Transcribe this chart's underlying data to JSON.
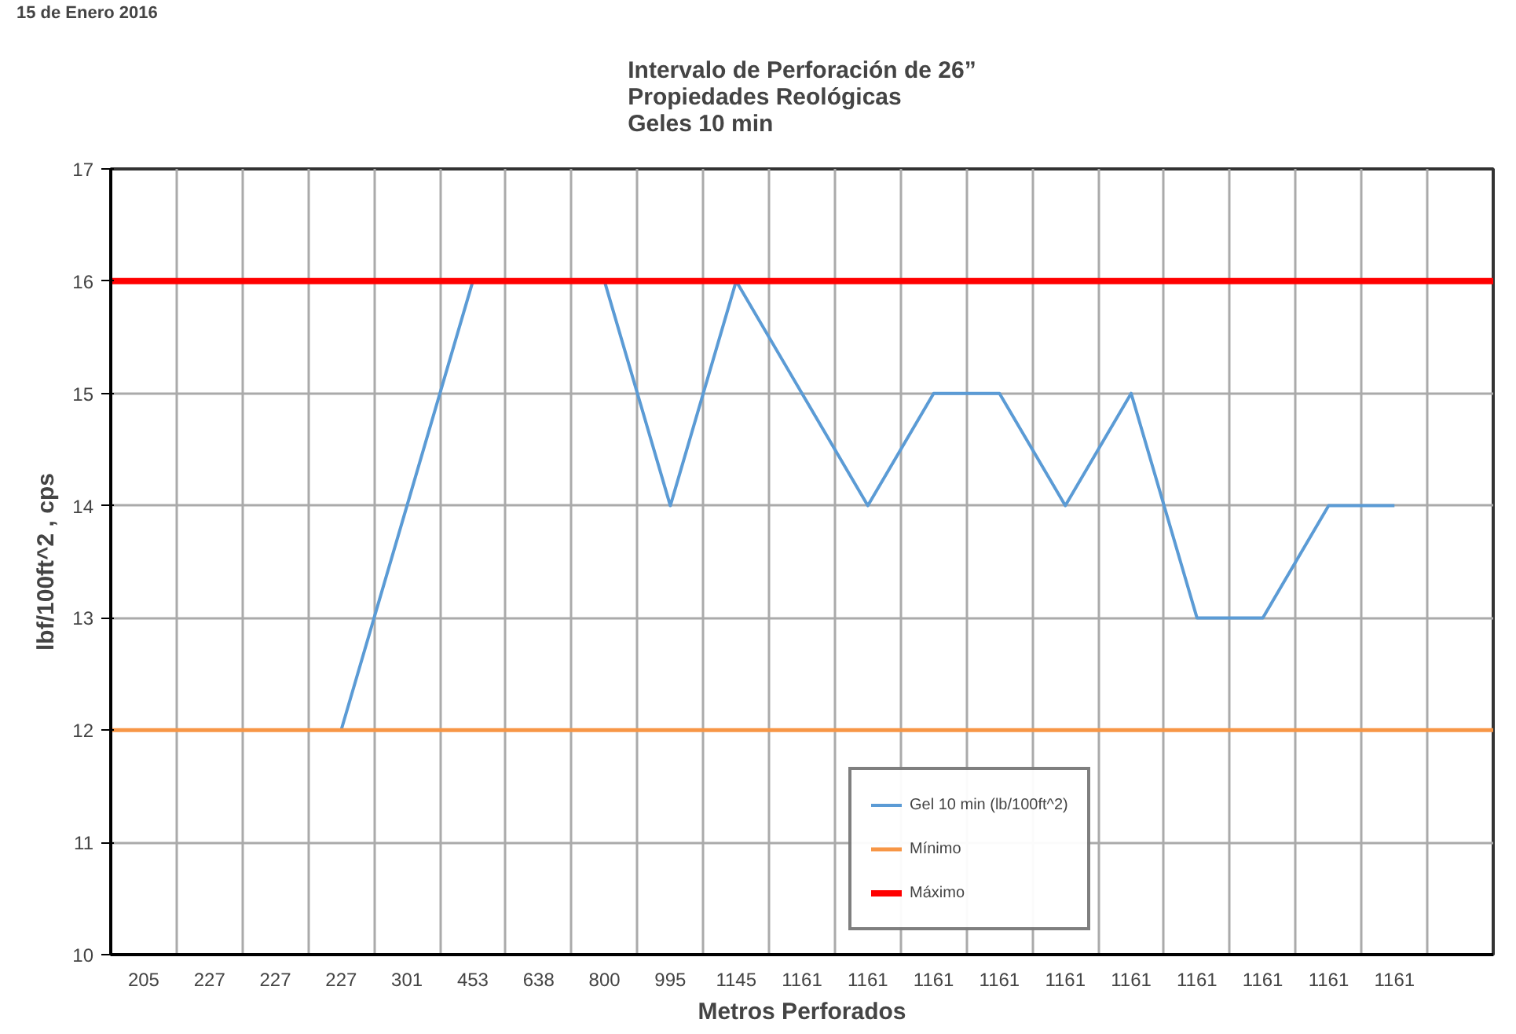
{
  "chart_data": {
    "type": "line",
    "title": "Intervalo de Perforación de 26”\nPropiedades Reológicas\nGeles 10 min",
    "xlabel": "Metros Perforados",
    "ylabel": "lbf/100ft^2 , cps",
    "annotations": [
      "15  de Enero  2016"
    ],
    "categories": [
      "205",
      "227",
      "227",
      "227",
      "301",
      "453",
      "638",
      "800",
      "995",
      "1145",
      "1161",
      "1161",
      "1161",
      "1161",
      "1161",
      "1161",
      "1161",
      "1161",
      "1161",
      "1161",
      null
    ],
    "series": [
      {
        "name": "Gel 10 min (lb/100ft^2)",
        "color": "#5b9bd5",
        "values": [
          null,
          null,
          null,
          12,
          14,
          16,
          null,
          16,
          14,
          16,
          15,
          14,
          15,
          15,
          14,
          15,
          13,
          13,
          14,
          14,
          null
        ]
      }
    ],
    "ref_lines": [
      {
        "axis": "y",
        "value": 12,
        "label": "Mínimo",
        "color": "#f79646"
      },
      {
        "axis": "y",
        "value": 16,
        "label": "Máximo",
        "color": "#ff0000"
      }
    ],
    "ylim": [
      10,
      17
    ],
    "yticks": [
      10,
      11,
      12,
      13,
      14,
      15,
      16,
      17
    ],
    "grid": true,
    "legend": "bottom right"
  }
}
